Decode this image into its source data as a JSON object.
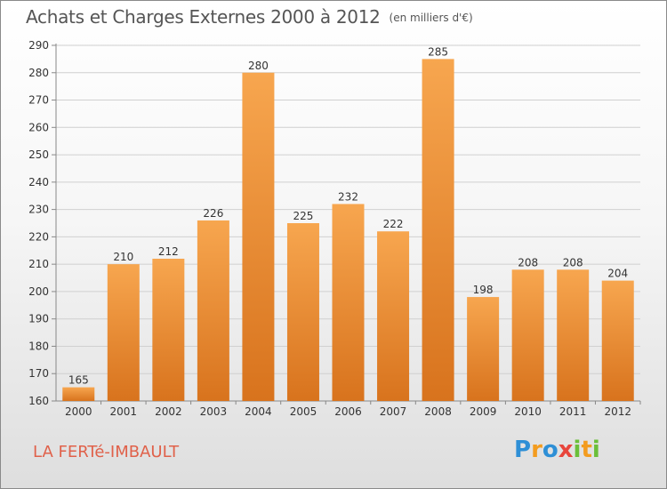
{
  "title": "Achats et Charges Externes 2000 à 2012",
  "unit_label": "(en milliers d'€)",
  "city": "LA FERTé-IMBAULT",
  "logo": {
    "text": "Proxiti",
    "letters": [
      {
        "char": "P",
        "color": "#2e8fd6"
      },
      {
        "char": "r",
        "color": "#f39c1f"
      },
      {
        "char": "o",
        "color": "#2e8fd6"
      },
      {
        "char": "x",
        "color": "#e8453c"
      },
      {
        "char": "i",
        "color": "#6abf3a"
      },
      {
        "char": "t",
        "color": "#f39c1f"
      },
      {
        "char": "i",
        "color": "#6abf3a"
      }
    ]
  },
  "colors": {
    "bar_top": "#f7a64f",
    "bar_bottom": "#d8731d",
    "grid": "#d0d0d0",
    "axis_text": "#333333",
    "title": "#555555",
    "city": "#e0614a"
  },
  "chart_data": {
    "type": "bar",
    "title": "Achats et Charges Externes 2000 à 2012",
    "subtitle": "(en milliers d'€)",
    "xlabel": "",
    "ylabel": "",
    "categories": [
      "2000",
      "2001",
      "2002",
      "2003",
      "2004",
      "2005",
      "2006",
      "2007",
      "2008",
      "2009",
      "2010",
      "2011",
      "2012"
    ],
    "values": [
      165,
      210,
      212,
      226,
      280,
      225,
      232,
      222,
      285,
      198,
      208,
      208,
      204
    ],
    "data_labels": [
      "165",
      "210",
      "212",
      "226",
      "280",
      "225",
      "232",
      "222",
      "285",
      "198",
      "208",
      "208",
      "204"
    ],
    "ylim": [
      160,
      290
    ],
    "yticks": [
      160,
      170,
      180,
      190,
      200,
      210,
      220,
      230,
      240,
      250,
      260,
      270,
      280,
      290
    ],
    "ytick_labels": [
      "160",
      "170",
      "180",
      "190",
      "200",
      "210",
      "220",
      "230",
      "240",
      "250",
      "260",
      "270",
      "280",
      "290"
    ],
    "grid": true,
    "legend": "none"
  }
}
